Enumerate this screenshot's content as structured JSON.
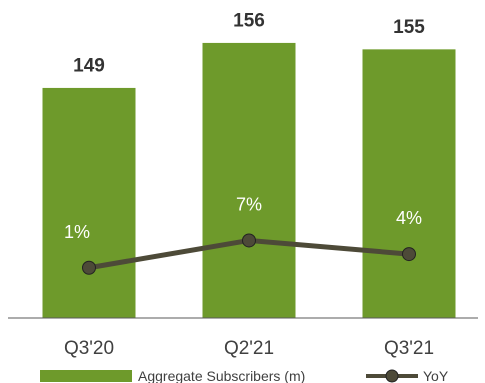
{
  "chart_data": {
    "type": "bar",
    "categories": [
      "Q3'20",
      "Q2'21",
      "Q3'21"
    ],
    "series": [
      {
        "name": "Aggregate Subscribers (m)",
        "type": "bar",
        "values": [
          149,
          156,
          155
        ],
        "value_labels": [
          "149",
          "156",
          "155"
        ]
      },
      {
        "name": "YoY",
        "type": "line",
        "values": [
          1,
          7,
          4
        ],
        "value_labels": [
          "1%",
          "7%",
          "4%"
        ]
      }
    ],
    "colors": {
      "bar": "#6e9a2b",
      "bar_edge": "#ffffff",
      "line": "#4d4a38",
      "axis": "#595959"
    },
    "legend_position": "bottom",
    "grid": false
  }
}
